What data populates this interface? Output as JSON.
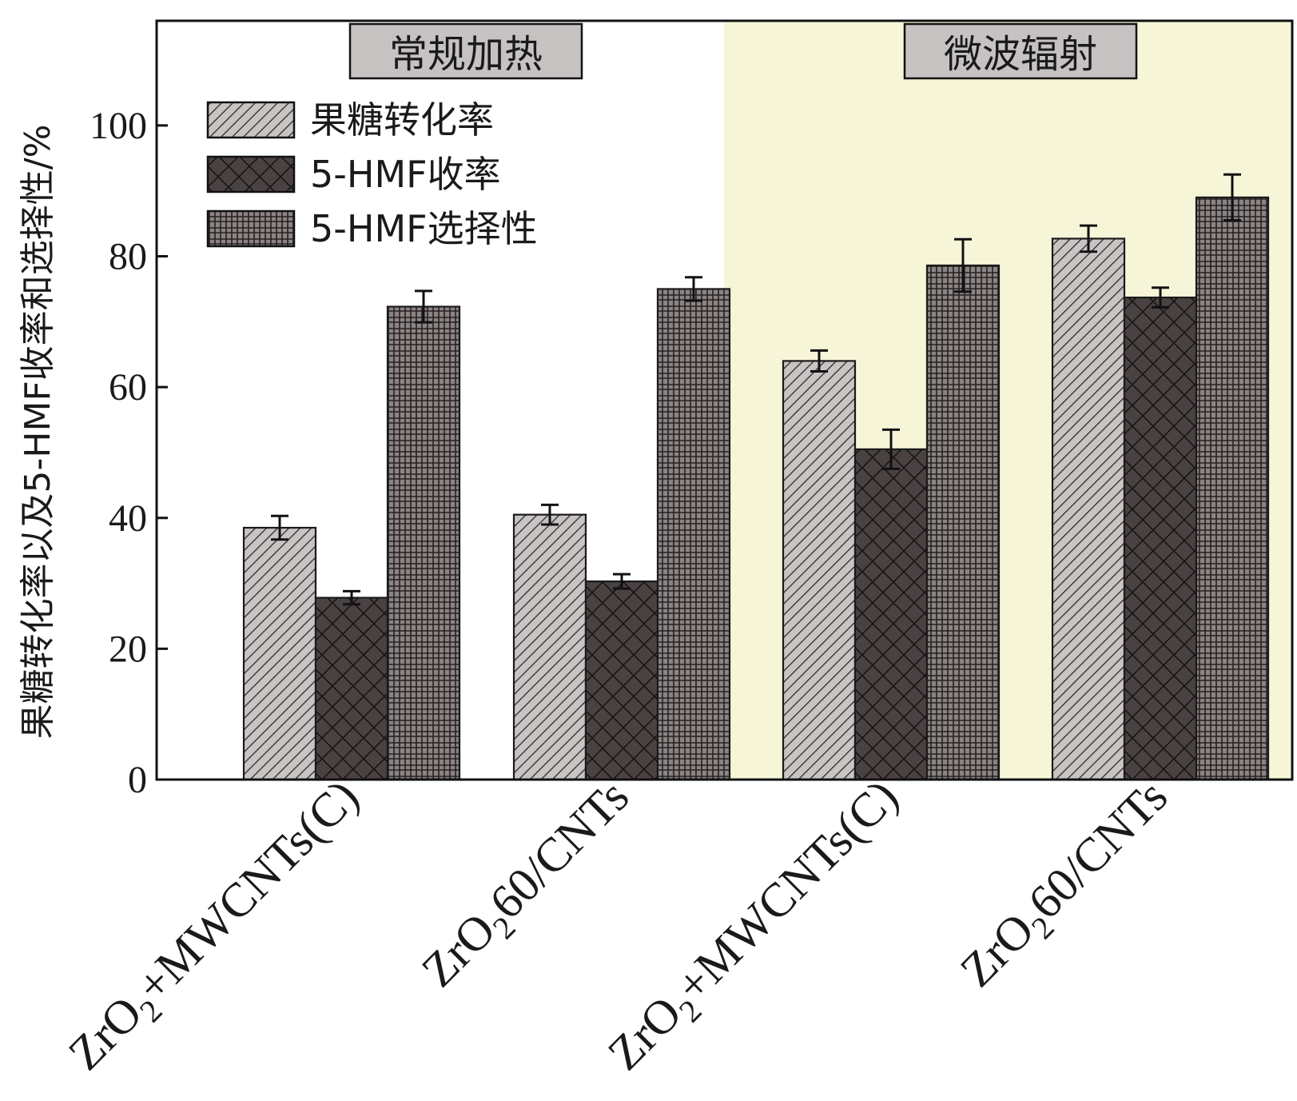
{
  "chart_data": {
    "type": "bar",
    "ylabel": "果糖转化率以及5-HMF收率和选择性/%",
    "ylim": [
      0,
      116
    ],
    "yticks": [
      0,
      20,
      40,
      60,
      80,
      100
    ],
    "groups": [
      {
        "name": "常规加热",
        "background": "#ffffff"
      },
      {
        "name": "微波辐射",
        "background": "#f7f5d8"
      }
    ],
    "categories": [
      {
        "main": "ZrO",
        "sub": "2",
        "rest": "+MWCNTs(C)",
        "group": 0
      },
      {
        "main": "ZrO",
        "sub": "2",
        "rest": "60/CNTs",
        "group": 0
      },
      {
        "main": "ZrO",
        "sub": "2",
        "rest": "+MWCNTs(C)",
        "group": 1
      },
      {
        "main": "ZrO",
        "sub": "2",
        "rest": "60/CNTs",
        "group": 1
      }
    ],
    "series": [
      {
        "name": "果糖转化率",
        "pattern": "diagonal",
        "color": "#c8c4c4",
        "values": [
          38.5,
          40.5,
          64.0,
          82.7
        ],
        "errors": [
          1.8,
          1.5,
          1.6,
          2.0
        ]
      },
      {
        "name": "5-HMF收率",
        "pattern": "crosshatch",
        "color": "#4a4242",
        "values": [
          27.8,
          30.3,
          50.5,
          73.7
        ],
        "errors": [
          1.0,
          1.1,
          3.0,
          1.5
        ]
      },
      {
        "name": "5-HMF选择性",
        "pattern": "grid",
        "color": "#8a8484",
        "values": [
          72.3,
          75.0,
          78.6,
          89.0
        ],
        "errors": [
          2.4,
          1.8,
          4.0,
          3.5
        ]
      }
    ],
    "legend_position": "top-left"
  }
}
